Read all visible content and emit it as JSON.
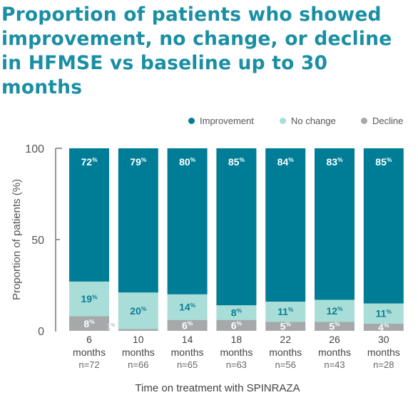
{
  "chart_data": {
    "type": "bar",
    "stacked": true,
    "title_lines": [
      "Proportion of patients who showed",
      "improvement, no change, or decline",
      "in HFMSE vs baseline up to 30",
      "months"
    ],
    "xlabel": "Time on treatment with SPINRAZA",
    "ylabel": "Proportion of patients (%)",
    "ylim": [
      0,
      100
    ],
    "yticks": [
      "0",
      "50",
      "100"
    ],
    "legend_position": "top-right",
    "categories": [
      {
        "label": "6",
        "unit": "months",
        "n": "n=72"
      },
      {
        "label": "10",
        "unit": "months",
        "n": "n=66"
      },
      {
        "label": "14",
        "unit": "months",
        "n": "n=65"
      },
      {
        "label": "18",
        "unit": "months",
        "n": "n=63"
      },
      {
        "label": "22",
        "unit": "months",
        "n": "n=56"
      },
      {
        "label": "26",
        "unit": "months",
        "n": "n=43"
      },
      {
        "label": "30",
        "unit": "months",
        "n": "n=28"
      }
    ],
    "series": [
      {
        "name": "Decline",
        "color": "#a6a8aa",
        "values": [
          8,
          1,
          6,
          6,
          5,
          5,
          4
        ]
      },
      {
        "name": "No change",
        "color": "#a9ddd8",
        "values": [
          19,
          20,
          14,
          8,
          11,
          12,
          11
        ]
      },
      {
        "name": "Improvement",
        "color": "#007d96",
        "values": [
          72,
          79,
          80,
          85,
          84,
          83,
          85
        ]
      }
    ],
    "legend_order": [
      "Improvement",
      "No change",
      "Decline"
    ]
  }
}
